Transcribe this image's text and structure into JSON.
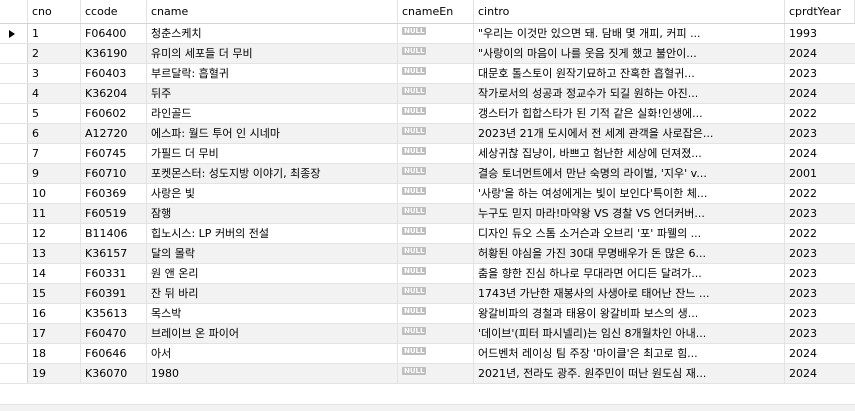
{
  "columns": {
    "cno": "cno",
    "ccode": "ccode",
    "cname": "cname",
    "cnameEn": "cnameEn",
    "cintro": "cintro",
    "cprdtYear": "cprdtYear"
  },
  "null_label": "NULL",
  "selected_row_index": 0,
  "rows": [
    {
      "cno": "1",
      "ccode": "F06400",
      "cname": "청춘스케치",
      "cnameEn": "NULL",
      "cintro": "\"우리는 이것만 있으면 돼. 담배 몇 개피, 커피 ...",
      "cprdtYear": "1993"
    },
    {
      "cno": "2",
      "ccode": "K36190",
      "cname": "유미의 세포들 더 무비",
      "cnameEn": "NULL",
      "cintro": "\"사랑이의 마음이 나를 웃음 짓게 했고 불안이...",
      "cprdtYear": "2024"
    },
    {
      "cno": "3",
      "ccode": "F60403",
      "cname": "부르달락: 흡혈귀",
      "cnameEn": "NULL",
      "cintro": "대문호 톨스토이 원작기묘하고 잔혹한 흡혈귀...",
      "cprdtYear": "2023"
    },
    {
      "cno": "4",
      "ccode": "K36204",
      "cname": "뒤주",
      "cnameEn": "NULL",
      "cintro": "작가로서의 성공과 정교수가 되길 원하는 아진...",
      "cprdtYear": "2024"
    },
    {
      "cno": "5",
      "ccode": "F60602",
      "cname": "라인골드",
      "cnameEn": "NULL",
      "cintro": "갱스터가 힙합스타가 된 기적 같은 실화!인생에...",
      "cprdtYear": "2022"
    },
    {
      "cno": "6",
      "ccode": "A12720",
      "cname": "에스파: 월드 투어 인 시네마",
      "cnameEn": "NULL",
      "cintro": "2023년 21개 도시에서 전 세계 관객을 사로잡은...",
      "cprdtYear": "2023"
    },
    {
      "cno": "7",
      "ccode": "F60745",
      "cname": "가필드 더 무비",
      "cnameEn": "NULL",
      "cintro": "세상귀찮 집냥이, 바쁘고 험난한 세상에 던져졌...",
      "cprdtYear": "2024"
    },
    {
      "cno": "9",
      "ccode": "F60710",
      "cname": "포켓몬스터: 성도지방 이야기, 최종장",
      "cnameEn": "NULL",
      "cintro": "결승 토너먼트에서 만난 숙명의 라이벌, '지우' v...",
      "cprdtYear": "2001"
    },
    {
      "cno": "10",
      "ccode": "F60369",
      "cname": "사랑은 빛",
      "cnameEn": "NULL",
      "cintro": "'사랑'을 하는 여성에게는 빛이 보인다'특이한 체...",
      "cprdtYear": "2022"
    },
    {
      "cno": "11",
      "ccode": "F60519",
      "cname": "잠행",
      "cnameEn": "NULL",
      "cintro": "누구도 믿지 마라!마약왕 VS 경찰 VS 언더커버...",
      "cprdtYear": "2023"
    },
    {
      "cno": "12",
      "ccode": "B11406",
      "cname": "힙노시스: LP 커버의 전설",
      "cnameEn": "NULL",
      "cintro": "디자인 듀오 스톰 소거슨과 오브리 '포' 파웰의 ...",
      "cprdtYear": "2022"
    },
    {
      "cno": "13",
      "ccode": "K36157",
      "cname": "달의 몰락",
      "cnameEn": "NULL",
      "cintro": "허황된 야심을 가진 30대 무명배우가 돈 많은 6...",
      "cprdtYear": "2023"
    },
    {
      "cno": "14",
      "ccode": "F60331",
      "cname": "원 앤 온리",
      "cnameEn": "NULL",
      "cintro": "춤을 향한 진심 하나로 무대라면 어디든 달려가...",
      "cprdtYear": "2023"
    },
    {
      "cno": "15",
      "ccode": "F60391",
      "cname": "잔 뒤 바리",
      "cnameEn": "NULL",
      "cintro": "1743년 가난한 재봉사의 사생아로 태어난 잔느 ...",
      "cprdtYear": "2023"
    },
    {
      "cno": "16",
      "ccode": "K35613",
      "cname": "목스박",
      "cnameEn": "NULL",
      "cintro": "왕갈비파의 경철과 태용이 왕갈비파 보스의 생...",
      "cprdtYear": "2023"
    },
    {
      "cno": "17",
      "ccode": "F60470",
      "cname": "브레이브 온 파이어",
      "cnameEn": "NULL",
      "cintro": "'데이브'(피터 파시넬리)는 임신 8개월차인 아내...",
      "cprdtYear": "2023"
    },
    {
      "cno": "18",
      "ccode": "F60646",
      "cname": "아서",
      "cnameEn": "NULL",
      "cintro": "어드벤처 레이싱 팀 주장 '마이클'은 최고로 힘...",
      "cprdtYear": "2024"
    },
    {
      "cno": "19",
      "ccode": "K36070",
      "cname": "1980",
      "cnameEn": "NULL",
      "cintro": "2021년, 전라도 광주. 원주민이 떠난 원도심 재...",
      "cprdtYear": "2024"
    }
  ]
}
